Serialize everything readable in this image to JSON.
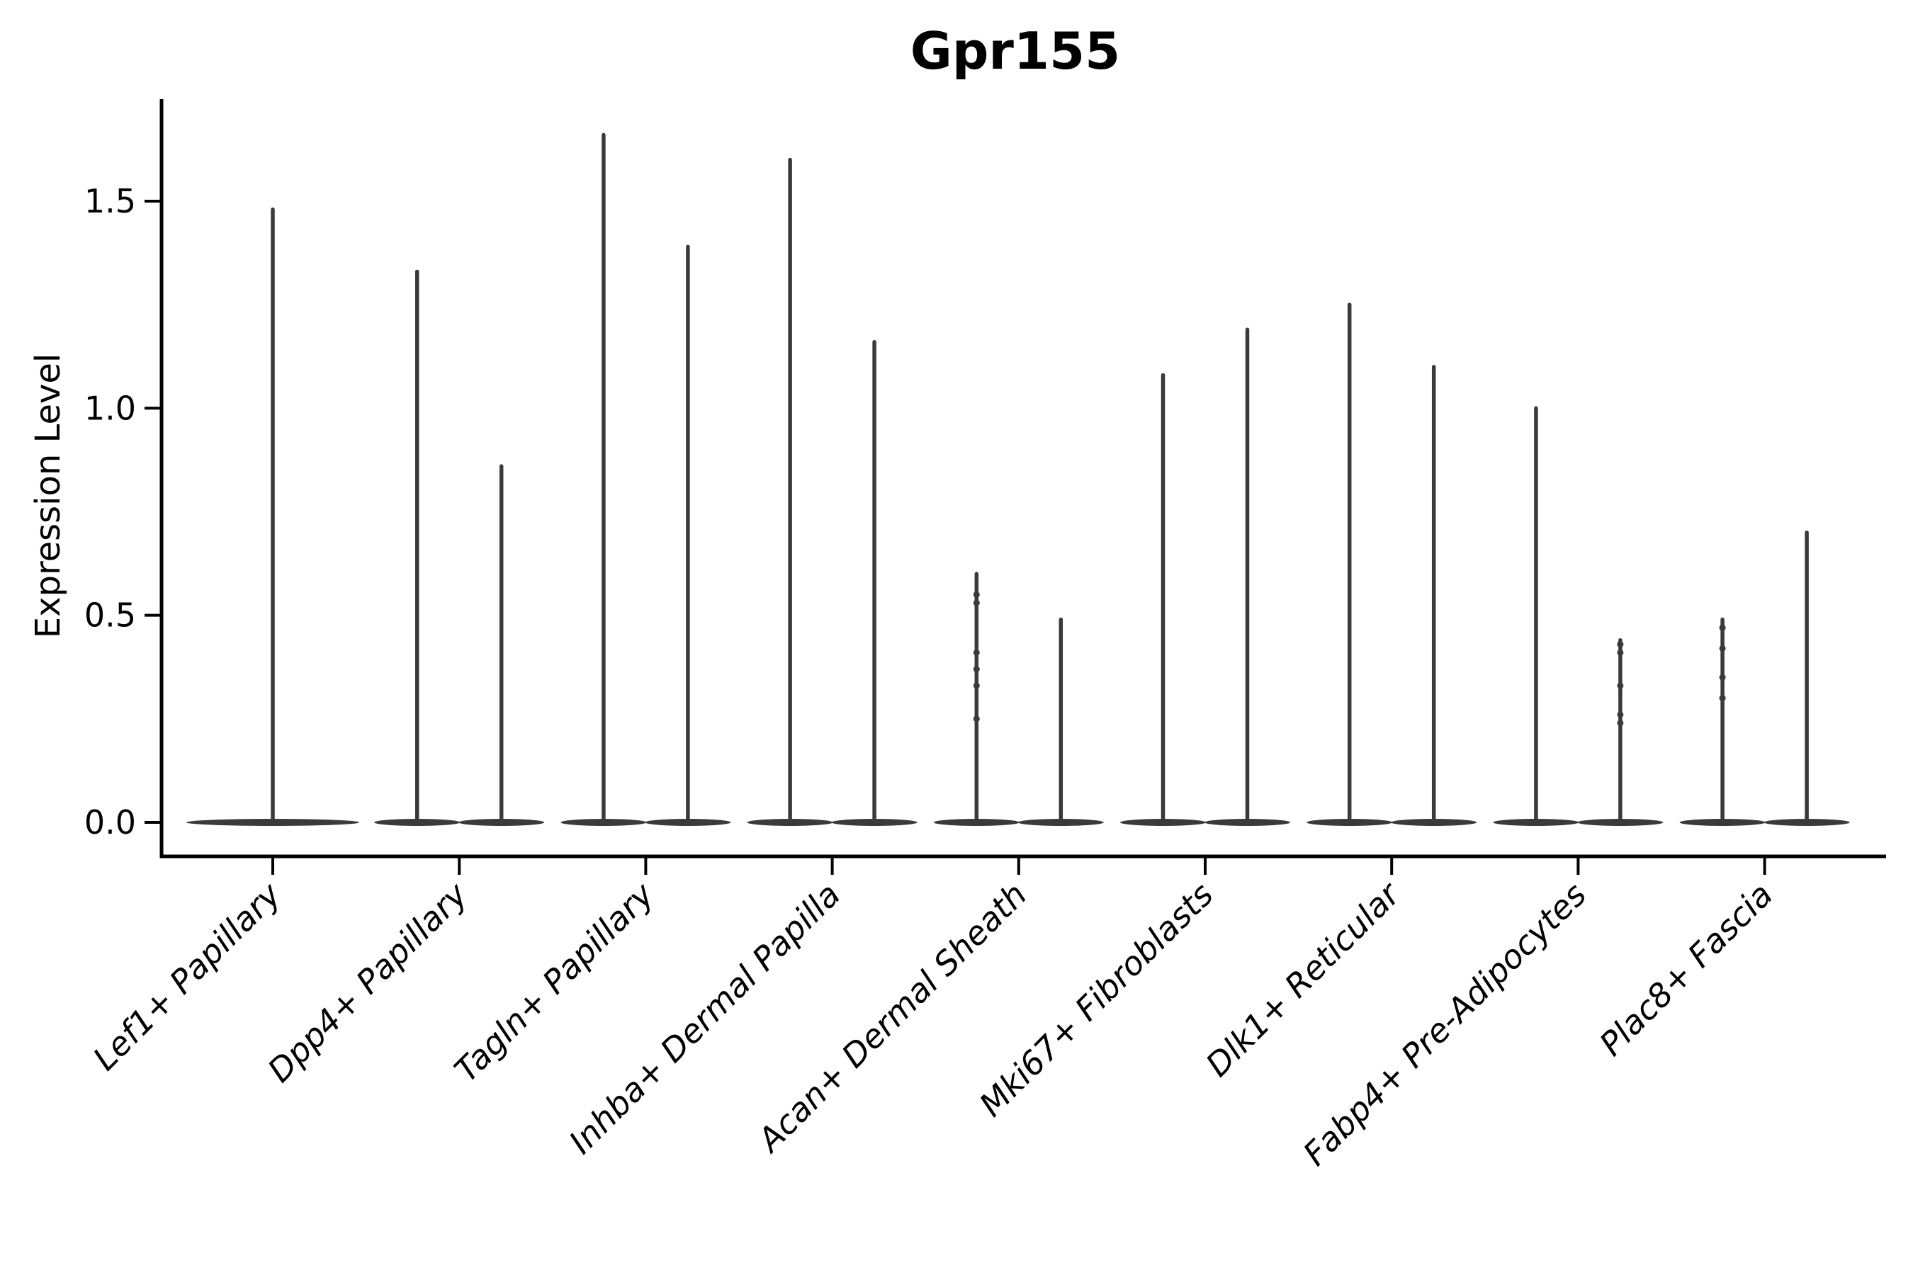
{
  "chart_data": {
    "type": "violin",
    "title": "Gpr155",
    "ylabel": "Expression Level",
    "xlabel": "",
    "yticks": [
      "0.0",
      "0.5",
      "1.0",
      "1.5"
    ],
    "ytick_values": [
      0.0,
      0.5,
      1.0,
      1.5
    ],
    "ylim": [
      -0.08,
      1.75
    ],
    "grid": false,
    "legend_position": "none",
    "violin_color": "#3a3a3a",
    "axis_color": "#000000",
    "baseline_value": 0.0,
    "note": "Each category shows thin violin(s): wide flat base at 0 expression with narrow spike to max expression",
    "categories": [
      {
        "label": "Lef1+ Papillary",
        "violins": [
          {
            "position": "center",
            "min": 0.0,
            "max": 1.48,
            "dots": []
          }
        ]
      },
      {
        "label": "Dpp4+ Papillary",
        "violins": [
          {
            "position": "left",
            "min": 0.0,
            "max": 1.33,
            "dots": []
          },
          {
            "position": "right",
            "min": 0.0,
            "max": 0.86,
            "dots": []
          }
        ]
      },
      {
        "label": "Tagln+ Papillary",
        "violins": [
          {
            "position": "left",
            "min": 0.0,
            "max": 1.66,
            "dots": []
          },
          {
            "position": "right",
            "min": 0.0,
            "max": 1.39,
            "dots": []
          }
        ]
      },
      {
        "label": "Inhba+ Dermal Papilla",
        "violins": [
          {
            "position": "left",
            "min": 0.0,
            "max": 1.6,
            "dots": []
          },
          {
            "position": "right",
            "min": 0.0,
            "max": 1.16,
            "dots": []
          }
        ]
      },
      {
        "label": "Acan+ Dermal Sheath",
        "violins": [
          {
            "position": "left",
            "min": 0.0,
            "max": 0.6,
            "dots": [
              0.55,
              0.53,
              0.41,
              0.37,
              0.33,
              0.25
            ]
          },
          {
            "position": "right",
            "min": 0.0,
            "max": 0.49,
            "dots": []
          }
        ]
      },
      {
        "label": "Mki67+ Fibroblasts",
        "violins": [
          {
            "position": "left",
            "min": 0.0,
            "max": 1.08,
            "dots": []
          },
          {
            "position": "right",
            "min": 0.0,
            "max": 1.19,
            "dots": []
          }
        ]
      },
      {
        "label": "Dlk1+ Reticular",
        "violins": [
          {
            "position": "left",
            "min": 0.0,
            "max": 1.25,
            "dots": []
          },
          {
            "position": "right",
            "min": 0.0,
            "max": 1.1,
            "dots": []
          }
        ]
      },
      {
        "label": "Fabp4+ Pre-Adipocytes",
        "violins": [
          {
            "position": "left",
            "min": 0.0,
            "max": 1.0,
            "dots": []
          },
          {
            "position": "right",
            "min": 0.0,
            "max": 0.44,
            "dots": [
              0.43,
              0.41,
              0.33,
              0.26,
              0.24
            ]
          }
        ]
      },
      {
        "label": "Plac8+ Fascia",
        "violins": [
          {
            "position": "left",
            "min": 0.0,
            "max": 0.49,
            "dots": [
              0.47,
              0.42,
              0.35,
              0.3
            ]
          },
          {
            "position": "right",
            "min": 0.0,
            "max": 0.7,
            "dots": []
          }
        ]
      }
    ]
  }
}
